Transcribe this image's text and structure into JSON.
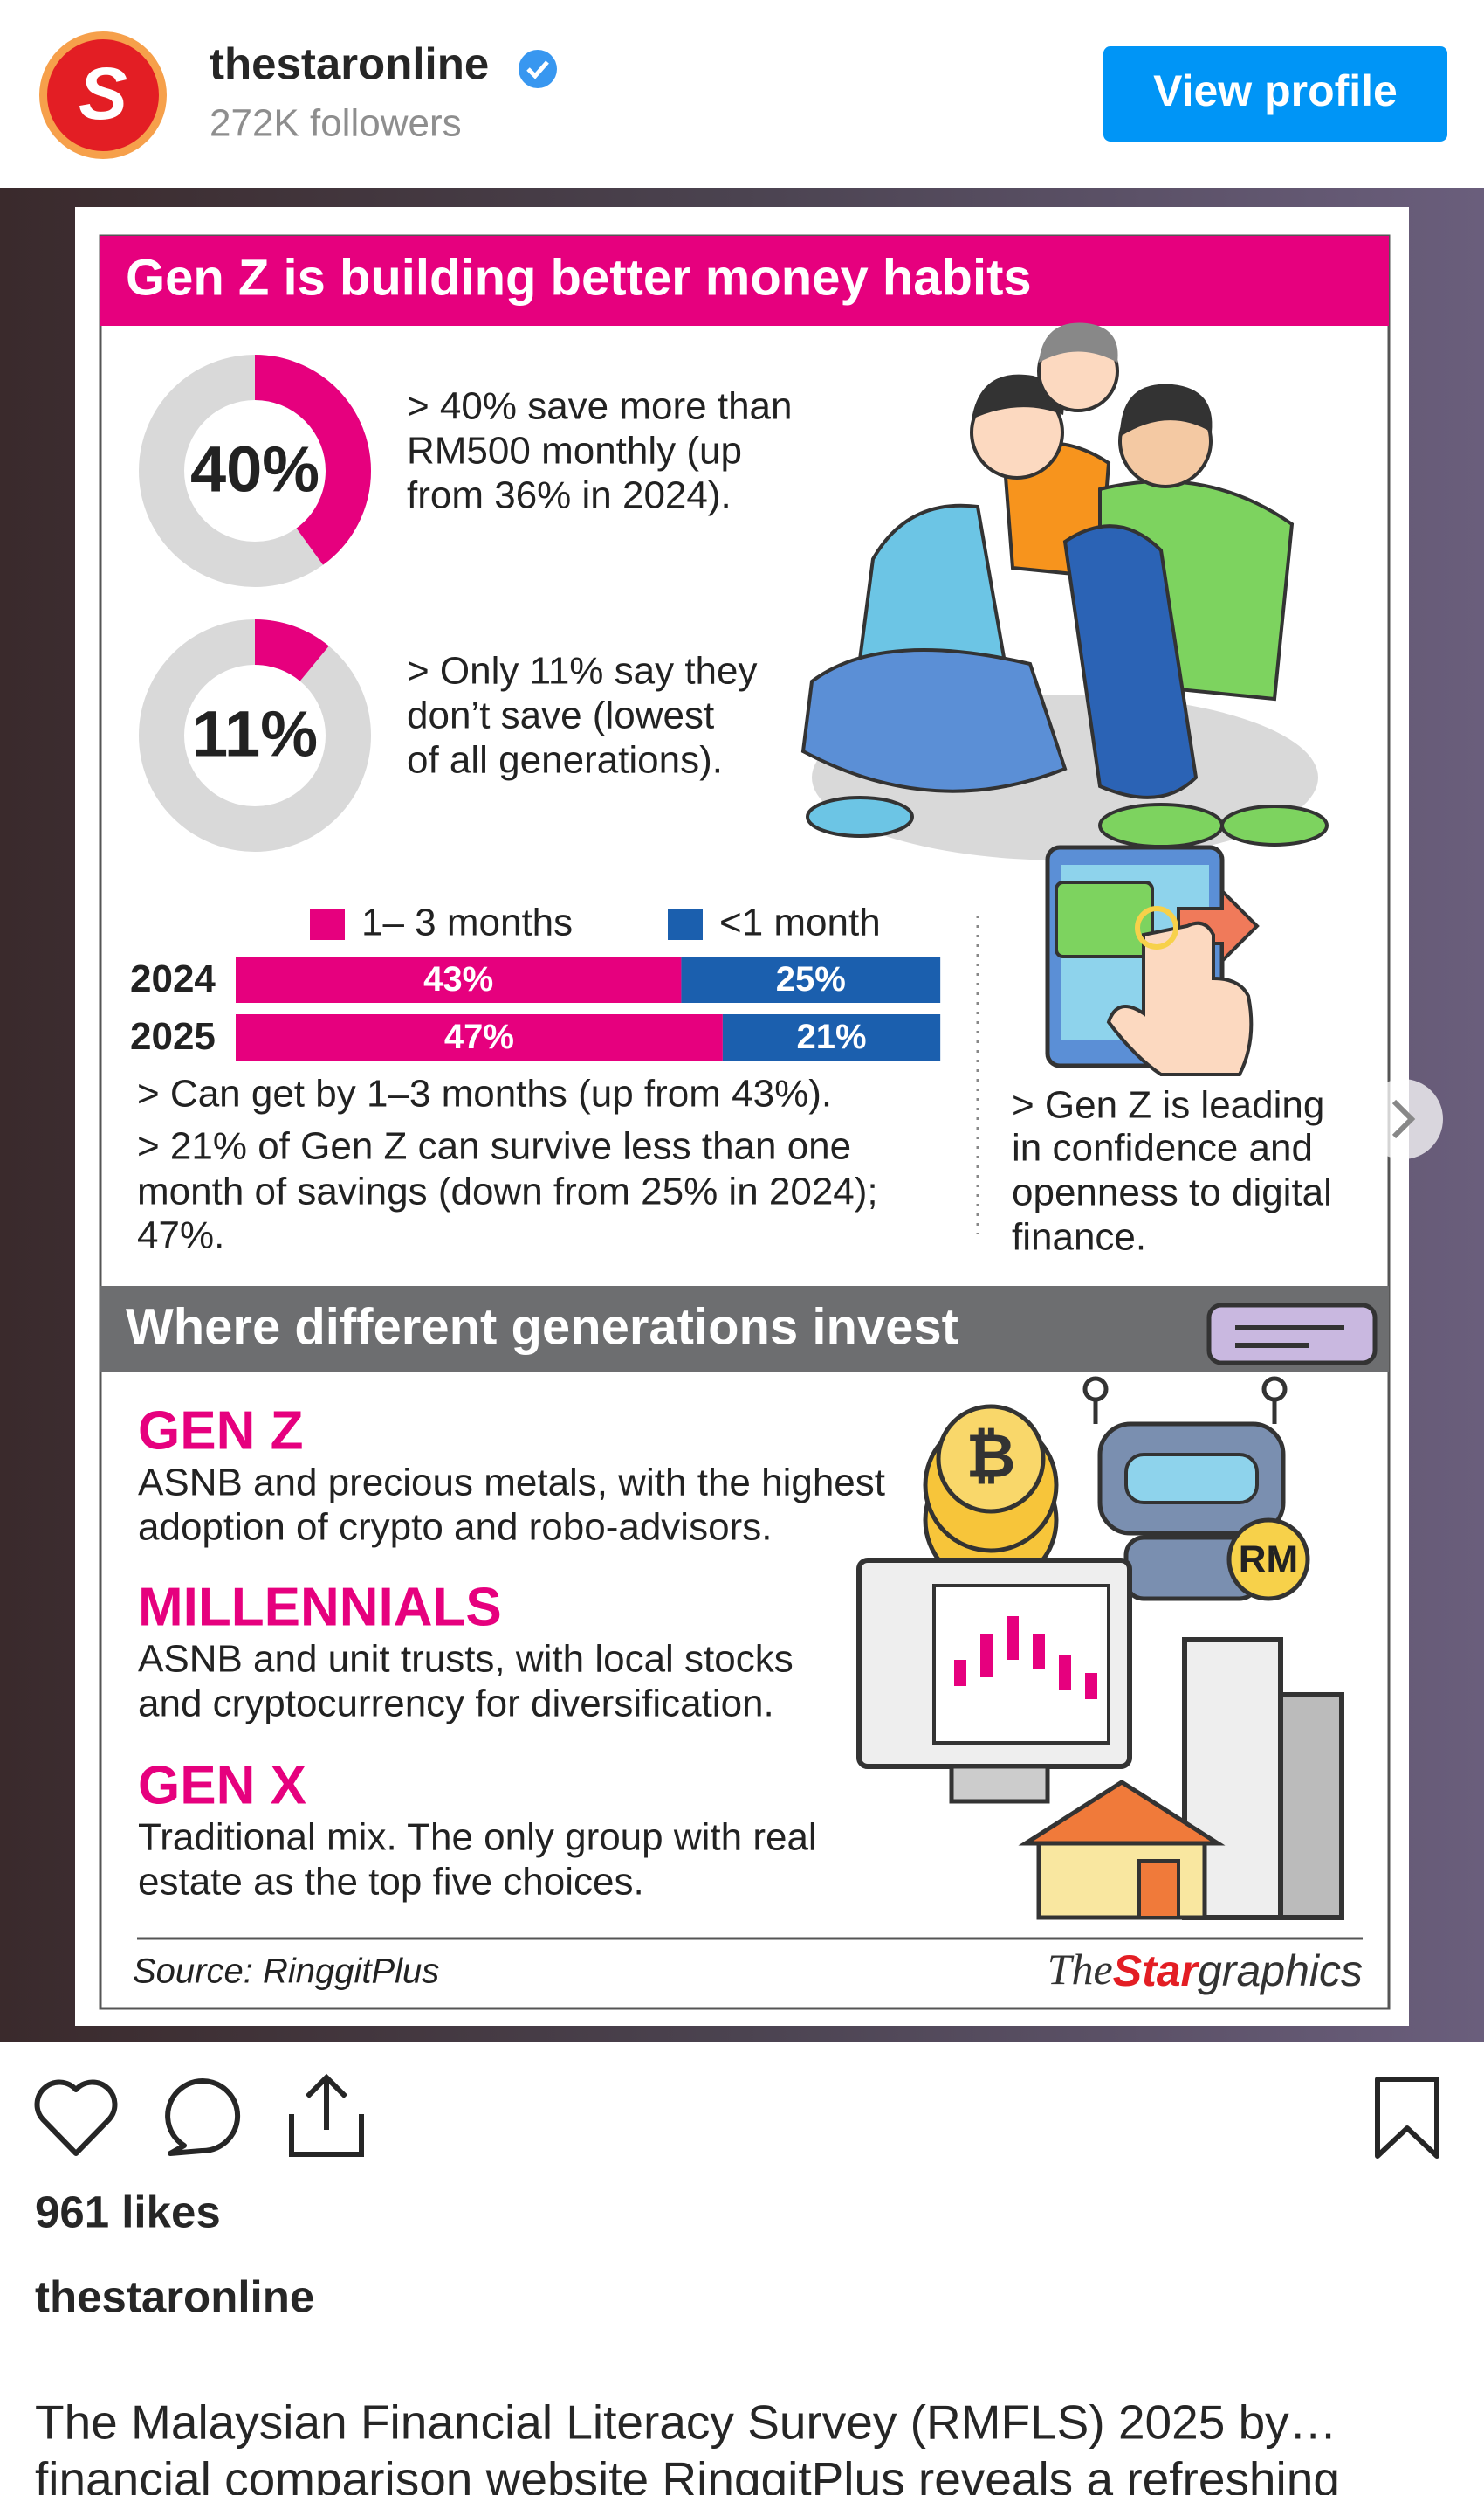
{
  "header": {
    "username": "thestaronline",
    "followers": "272K followers",
    "button": "View profile"
  },
  "infographic": {
    "title": "Gen Z is building better money habits",
    "stats": [
      {
        "value": 40,
        "value_label": "40%",
        "text": [
          "> 40% save more than",
          "RM500 monthly (up",
          "from 36% in 2024)."
        ]
      },
      {
        "value": 11,
        "value_label": "11%",
        "text": [
          "> Only 11% say they",
          "don’t save (lowest",
          "of all generations)."
        ]
      }
    ],
    "savings_chart": {
      "type": "bar",
      "categories": [
        "2024",
        "2025"
      ],
      "series": [
        {
          "name": "1– 3 months",
          "color": "#e6007e",
          "values": [
            43,
            47
          ],
          "value_labels": [
            "43%",
            "47%"
          ]
        },
        {
          "name": "<1 month",
          "color": "#1b5fae",
          "values": [
            25,
            21
          ],
          "value_labels": [
            "25%",
            "21%"
          ]
        }
      ]
    },
    "savings_notes": [
      "> Can get by 1–3 months (up from 43%).",
      "> 21% of Gen Z can survive less than one",
      "month of savings (down from 25% in 2024);",
      "47%."
    ],
    "digital_notes": [
      "> Gen Z is leading",
      "in confidence and",
      "openness to digital",
      "finance."
    ],
    "section_title": "Where different generations invest",
    "groups": [
      {
        "name": "GEN Z",
        "lines": [
          "ASNB and precious metals, with the highest",
          "adoption of crypto and robo-advisors."
        ]
      },
      {
        "name": "MILLENNIALS",
        "lines": [
          "ASNB and unit trusts, with local stocks",
          "and cryptocurrency for diversification."
        ]
      },
      {
        "name": "GEN X",
        "lines": [
          "Traditional mix. The only group with real",
          "estate as the top five choices."
        ]
      }
    ],
    "source": "Source: RinggitPlus",
    "brand": [
      "The",
      "Star",
      "graphics"
    ],
    "robot_badge": "RM"
  },
  "actions": {
    "likes": "961 likes",
    "username": "thestaronline",
    "caption": [
      "The Malaysian Financial Literacy Survey (RMFLS) 2025 by…",
      "financial comparison website RinggitPlus reveals a refreshing"
    ]
  }
}
